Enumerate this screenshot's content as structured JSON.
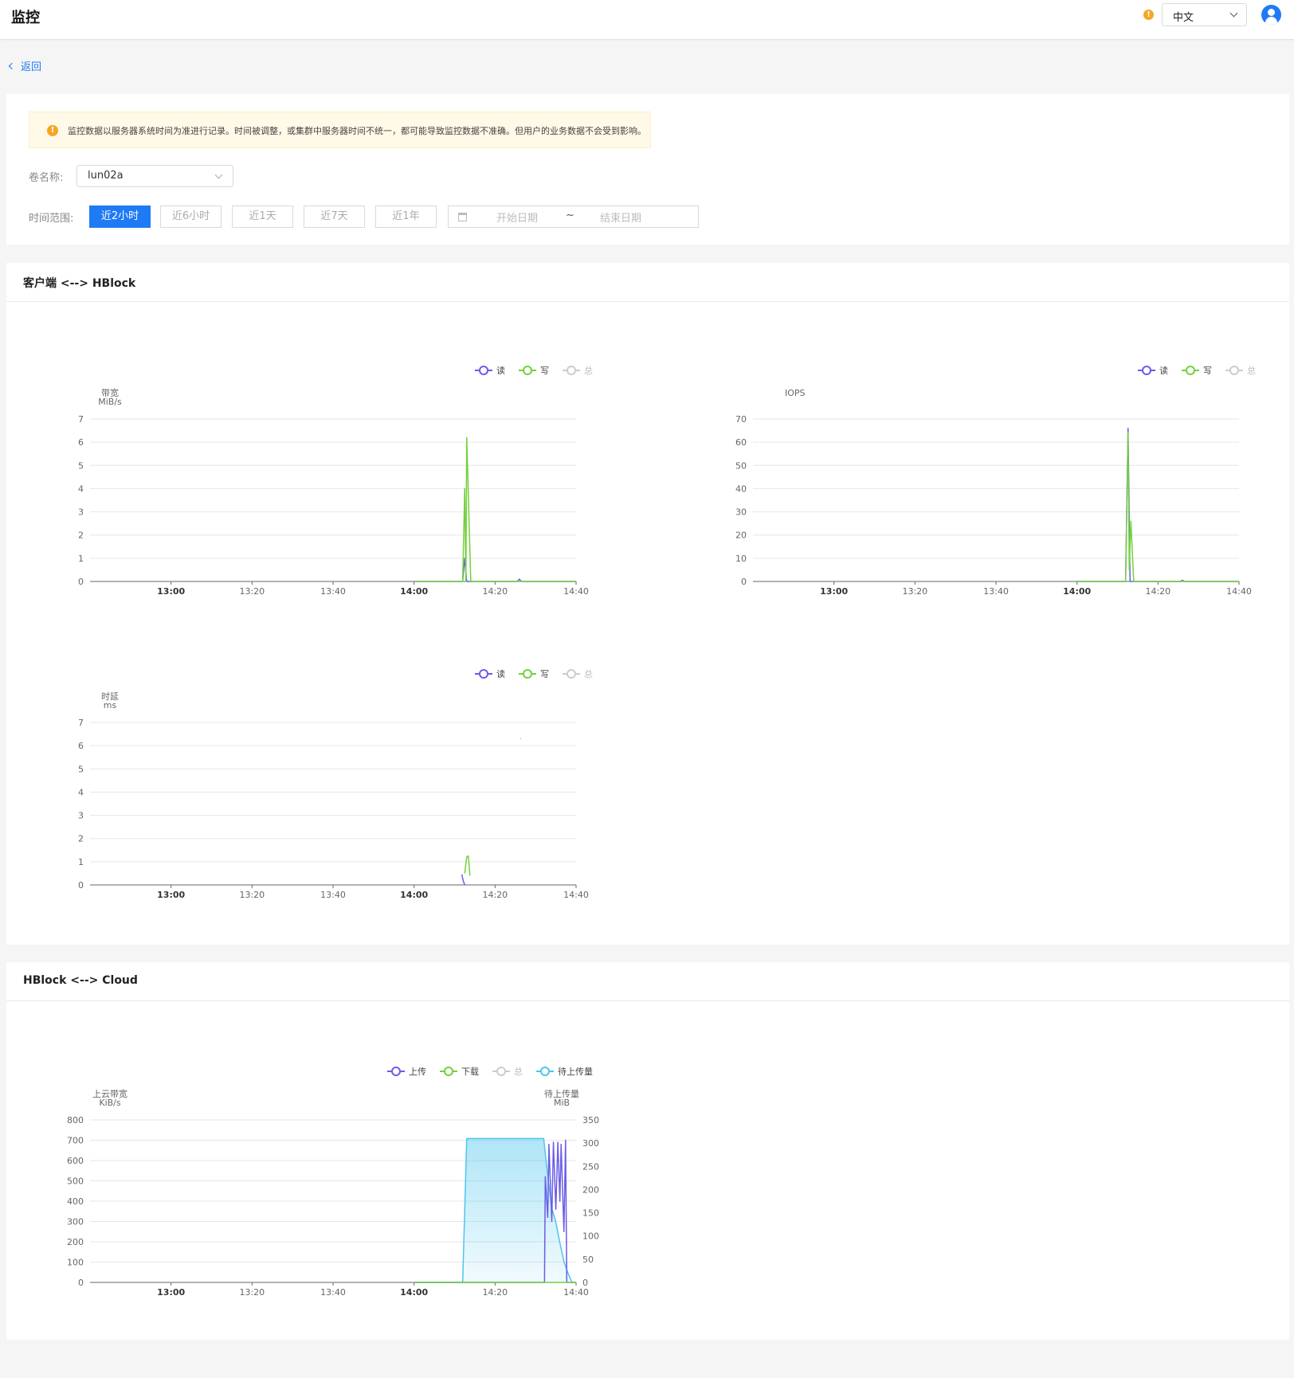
{
  "header": {
    "title": "监控",
    "language": "中文"
  },
  "back": {
    "label": "返回"
  },
  "notice": {
    "text": "监控数据以服务器系统时间为准进行记录。时间被调整，或集群中服务器时间不统一，都可能导致监控数据不准确。但用户的业务数据不会受到影响。"
  },
  "filters": {
    "volume_label": "卷名称:",
    "volume_value": "lun02a",
    "range_label": "时间范围:",
    "ranges": [
      "近2小时",
      "近6小时",
      "近1天",
      "近7天",
      "近1年"
    ],
    "active_range": "近2小时",
    "start_placeholder": "开始日期",
    "end_placeholder": "结束日期",
    "range_separator": "~"
  },
  "sections": {
    "client": {
      "title": "客户端 <--> HBlock"
    },
    "cloud": {
      "title": "HBlock <--> Cloud"
    }
  },
  "colors": {
    "primary": "#1f7af5",
    "read": "#6a5de8",
    "write": "#73d13d",
    "total": "#cccccc",
    "pending": "#4dc5ee",
    "warning": "#f5a623"
  },
  "chart_data": [
    {
      "id": "bandwidth",
      "type": "line",
      "ylabel": "带宽",
      "yunit": "MiB/s",
      "ylim": [
        0,
        7
      ],
      "yticks": [
        0,
        1,
        2,
        3,
        4,
        5,
        6,
        7
      ],
      "xticks": [
        "13:00",
        "13:20",
        "13:40",
        "14:00",
        "14:20",
        "14:40"
      ],
      "bold_xticks": [
        "13:00",
        "14:00"
      ],
      "xlim": [
        "12:40",
        "14:40"
      ],
      "grid": true,
      "legend": "top",
      "legend_items": [
        {
          "name": "读",
          "color": "#6a5de8",
          "active": true
        },
        {
          "name": "写",
          "color": "#73d13d",
          "active": true
        },
        {
          "name": "总",
          "color": "#cccccc",
          "active": false
        }
      ],
      "series": [
        {
          "name": "读",
          "color": "#6a5de8",
          "points": [
            [
              "14:00",
              0
            ],
            [
              "14:12",
              0
            ],
            [
              "14:12.5",
              1
            ],
            [
              "14:13",
              0
            ],
            [
              "14:25.5",
              0
            ],
            [
              "14:26",
              0.1
            ],
            [
              "14:26.5",
              0
            ],
            [
              "14:40",
              0
            ]
          ]
        },
        {
          "name": "写",
          "color": "#73d13d",
          "points": [
            [
              "14:00",
              0
            ],
            [
              "14:12",
              0
            ],
            [
              "14:12.5",
              4.0
            ],
            [
              "14:12.8",
              0
            ],
            [
              "14:13",
              6.2
            ],
            [
              "14:14",
              0
            ],
            [
              "14:26",
              0
            ],
            [
              "14:40",
              0
            ]
          ]
        }
      ]
    },
    {
      "id": "iops",
      "type": "line",
      "ylabel": "IOPS",
      "yunit": "",
      "ylim": [
        0,
        70
      ],
      "yticks": [
        0,
        10,
        20,
        30,
        40,
        50,
        60,
        70
      ],
      "xticks": [
        "13:00",
        "13:20",
        "13:40",
        "14:00",
        "14:20",
        "14:40"
      ],
      "bold_xticks": [
        "13:00",
        "14:00"
      ],
      "xlim": [
        "12:40",
        "14:40"
      ],
      "grid": true,
      "legend": "top",
      "legend_items": [
        {
          "name": "读",
          "color": "#6a5de8",
          "active": true
        },
        {
          "name": "写",
          "color": "#73d13d",
          "active": true
        },
        {
          "name": "总",
          "color": "#cccccc",
          "active": false
        }
      ],
      "series": [
        {
          "name": "读",
          "color": "#6a5de8",
          "points": [
            [
              "14:00",
              0
            ],
            [
              "14:12",
              0
            ],
            [
              "14:12.6",
              66
            ],
            [
              "14:13.1",
              0
            ],
            [
              "14:25.5",
              0
            ],
            [
              "14:26",
              0.5
            ],
            [
              "14:26.5",
              0
            ],
            [
              "14:40",
              0
            ]
          ]
        },
        {
          "name": "写",
          "color": "#73d13d",
          "points": [
            [
              "14:00",
              0
            ],
            [
              "14:12",
              0
            ],
            [
              "14:12.6",
              64
            ],
            [
              "14:12.9",
              5
            ],
            [
              "14:13.3",
              26
            ],
            [
              "14:14",
              0
            ],
            [
              "14:26",
              0
            ],
            [
              "14:40",
              0
            ]
          ]
        }
      ]
    },
    {
      "id": "latency",
      "type": "line",
      "ylabel": "时延",
      "yunit": "ms",
      "ylim": [
        0,
        7
      ],
      "yticks": [
        0,
        1,
        2,
        3,
        4,
        5,
        6,
        7
      ],
      "xticks": [
        "13:00",
        "13:20",
        "13:40",
        "14:00",
        "14:20",
        "14:40"
      ],
      "bold_xticks": [
        "13:00",
        "14:00"
      ],
      "xlim": [
        "12:40",
        "14:40"
      ],
      "grid": true,
      "legend": "top",
      "legend_items": [
        {
          "name": "读",
          "color": "#6a5de8",
          "active": true
        },
        {
          "name": "写",
          "color": "#73d13d",
          "active": true
        },
        {
          "name": "总",
          "color": "#cccccc",
          "active": false
        }
      ],
      "series": [
        {
          "name": "读",
          "color": "#6a5de8",
          "points": [
            [
              "14:11.8",
              0.45
            ],
            [
              "14:12.1",
              0.2
            ],
            [
              "14:12.5",
              0
            ]
          ]
        },
        {
          "name": "写",
          "color": "#73d13d",
          "points": [
            [
              "14:12.5",
              0.5
            ],
            [
              "14:13",
              1.2
            ],
            [
              "14:13.4",
              1.25
            ],
            [
              "14:13.8",
              0.4
            ]
          ]
        },
        {
          "name": "读",
          "color": "#6a5de8",
          "points": [
            [
              "14:26.3",
              6.3
            ],
            [
              "14:26.4",
              6.3
            ]
          ]
        }
      ]
    },
    {
      "id": "cloud",
      "type": "line",
      "ylabel": "上云带宽",
      "yunit": "KiB/s",
      "ylim": [
        0,
        800
      ],
      "yticks": [
        0,
        100,
        200,
        300,
        400,
        500,
        600,
        700,
        800
      ],
      "y2label": "待上传量",
      "y2unit": "MiB",
      "y2lim": [
        0,
        350
      ],
      "y2ticks": [
        0,
        50,
        100,
        150,
        200,
        250,
        300,
        350
      ],
      "xticks": [
        "13:00",
        "13:20",
        "13:40",
        "14:00",
        "14:20",
        "14:40"
      ],
      "bold_xticks": [
        "13:00",
        "14:00"
      ],
      "xlim": [
        "12:40",
        "14:40"
      ],
      "grid": true,
      "legend": "top",
      "legend_items": [
        {
          "name": "上传",
          "color": "#6a5de8",
          "active": true
        },
        {
          "name": "下载",
          "color": "#73d13d",
          "active": true
        },
        {
          "name": "总",
          "color": "#cccccc",
          "active": false
        },
        {
          "name": "待上传量",
          "color": "#4dc5ee",
          "active": true
        }
      ],
      "series": [
        {
          "name": "待上传量",
          "axis": "right",
          "area": true,
          "color": "#4dc5ee",
          "points": [
            [
              "14:00",
              0
            ],
            [
              "14:12",
              0
            ],
            [
              "14:13",
              310
            ],
            [
              "14:32",
              310
            ],
            [
              "14:33",
              230
            ],
            [
              "14:34",
              160
            ],
            [
              "14:35",
              130
            ],
            [
              "14:36",
              85
            ],
            [
              "14:37",
              45
            ],
            [
              "14:38",
              20
            ],
            [
              "14:39",
              0
            ],
            [
              "14:40",
              0
            ]
          ]
        },
        {
          "name": "上传",
          "axis": "left",
          "color": "#6a5de8",
          "points": [
            [
              "14:00",
              0
            ],
            [
              "14:32.2",
              0
            ],
            [
              "14:32.4",
              520
            ],
            [
              "14:33",
              320
            ],
            [
              "14:33.3",
              680
            ],
            [
              "14:34",
              300
            ],
            [
              "14:34.4",
              690
            ],
            [
              "14:35",
              360
            ],
            [
              "14:35.5",
              690
            ],
            [
              "14:36",
              400
            ],
            [
              "14:36.3",
              680
            ],
            [
              "14:37",
              250
            ],
            [
              "14:37.4",
              700
            ],
            [
              "14:37.7",
              0
            ],
            [
              "14:40",
              0
            ]
          ]
        },
        {
          "name": "下载",
          "axis": "left",
          "color": "#73d13d",
          "points": [
            [
              "14:00",
              0
            ],
            [
              "14:40",
              0
            ]
          ]
        }
      ]
    }
  ]
}
